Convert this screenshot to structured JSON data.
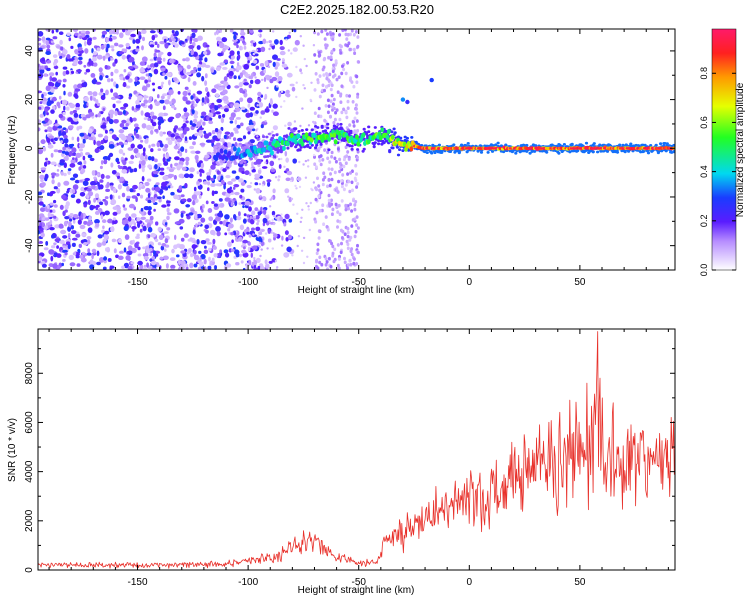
{
  "title": "C2E2.2025.182.00.53.R20",
  "colors": {
    "snr_line": "#e8302a",
    "axis": "#000000",
    "spectrogram_low": "#8a3ff0",
    "spectrogram_high": "#ff1a3a"
  },
  "chart_data": [
    {
      "type": "heatmap",
      "title": "C2E2.2025.182.00.53.R20",
      "xlabel": "Height of straight line (km)",
      "ylabel": "Frequency (Hz)",
      "xlim": [
        -195,
        93
      ],
      "ylim": [
        -50,
        49
      ],
      "xticks": [
        "-150",
        "-100",
        "-50",
        "0",
        "50"
      ],
      "yticks": [
        "40",
        "20",
        "0",
        "-20",
        "-40"
      ],
      "colorbar": {
        "label": "Normalized spectral amplitude",
        "range": [
          0,
          0.98
        ],
        "ticks": [
          "0.0",
          "0.2",
          "0.4",
          "0.6",
          "0.8"
        ]
      },
      "ridge": {
        "x": [
          -110,
          -100,
          -90,
          -80,
          -70,
          -60,
          -50,
          -40,
          -30,
          -20,
          0,
          20,
          50,
          93
        ],
        "frequency": [
          -3,
          -2,
          1,
          3,
          4,
          6,
          3,
          5,
          2,
          0,
          0,
          0,
          0,
          0
        ],
        "amplitude": [
          0.3,
          0.4,
          0.5,
          0.55,
          0.6,
          0.6,
          0.55,
          0.6,
          0.8,
          0.95,
          0.95,
          0.95,
          0.95,
          0.95
        ]
      },
      "noise_region_x": [
        -195,
        -100
      ],
      "noise_band_x": [
        -70,
        -50
      ]
    },
    {
      "type": "line",
      "xlabel": "Height of straight line (km)",
      "ylabel": "SNR (10 * v/v)",
      "xlim": [
        -195,
        93
      ],
      "ylim": [
        0,
        9800
      ],
      "xticks": [
        "-150",
        "-100",
        "-50",
        "0",
        "50"
      ],
      "yticks": [
        "0",
        "2000",
        "4000",
        "6000",
        "8000"
      ],
      "series": [
        {
          "trend_x": [
            -195,
            -150,
            -110,
            -90,
            -80,
            -70,
            -65,
            -60,
            -50,
            -42,
            -38,
            -30,
            -20,
            -10,
            0,
            10,
            20,
            25,
            30,
            40,
            50,
            55,
            58,
            60,
            65,
            70,
            80,
            93
          ],
          "trend_y": [
            200,
            200,
            250,
            500,
            900,
            1200,
            900,
            500,
            300,
            300,
            1100,
            1600,
            2000,
            2500,
            2800,
            3200,
            3700,
            4200,
            4500,
            4500,
            4800,
            4900,
            6000,
            5000,
            4600,
            4500,
            4600,
            4700
          ],
          "peaks": {
            "x": [
              58,
              59,
              60,
              53,
              65,
              -15,
              10,
              25,
              -75
            ],
            "y": [
              9700,
              7800,
              7000,
              7600,
              6800,
              3400,
              4100,
              5200,
              1600
            ]
          }
        }
      ]
    }
  ]
}
